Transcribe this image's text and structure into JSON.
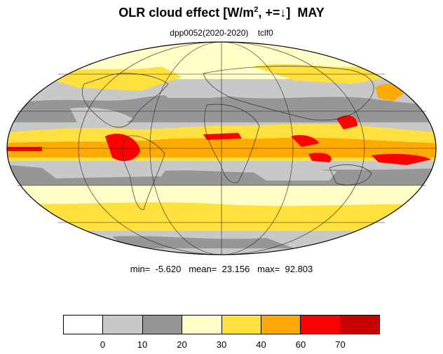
{
  "title": {
    "main": "OLR cloud effect [W/m",
    "sup": "2",
    "rest": ", +=↓]  MAY"
  },
  "subtitle": "dpp0052(2020-2020)    tclf0",
  "stats": "min=  -5.620   mean=  23.156   max=  92.803",
  "colorbar": {
    "colors": [
      "#ffffff",
      "#c8c8c8",
      "#969696",
      "#ffffc8",
      "#ffe03c",
      "#ffaa00",
      "#ff0000",
      "#c80000"
    ],
    "labels": [
      "0",
      "10",
      "20",
      "30",
      "40",
      "60",
      "70"
    ]
  },
  "map": {
    "projection": "mollweide",
    "ocean_color": "#c8c8c8",
    "colors": {
      "white": "#ffffff",
      "light_gray": "#c8c8c8",
      "gray": "#969696",
      "pale_yellow": "#ffffc8",
      "yellow": "#ffe03c",
      "orange": "#ffaa00",
      "red": "#ff0000",
      "dark_red": "#c80000"
    }
  }
}
